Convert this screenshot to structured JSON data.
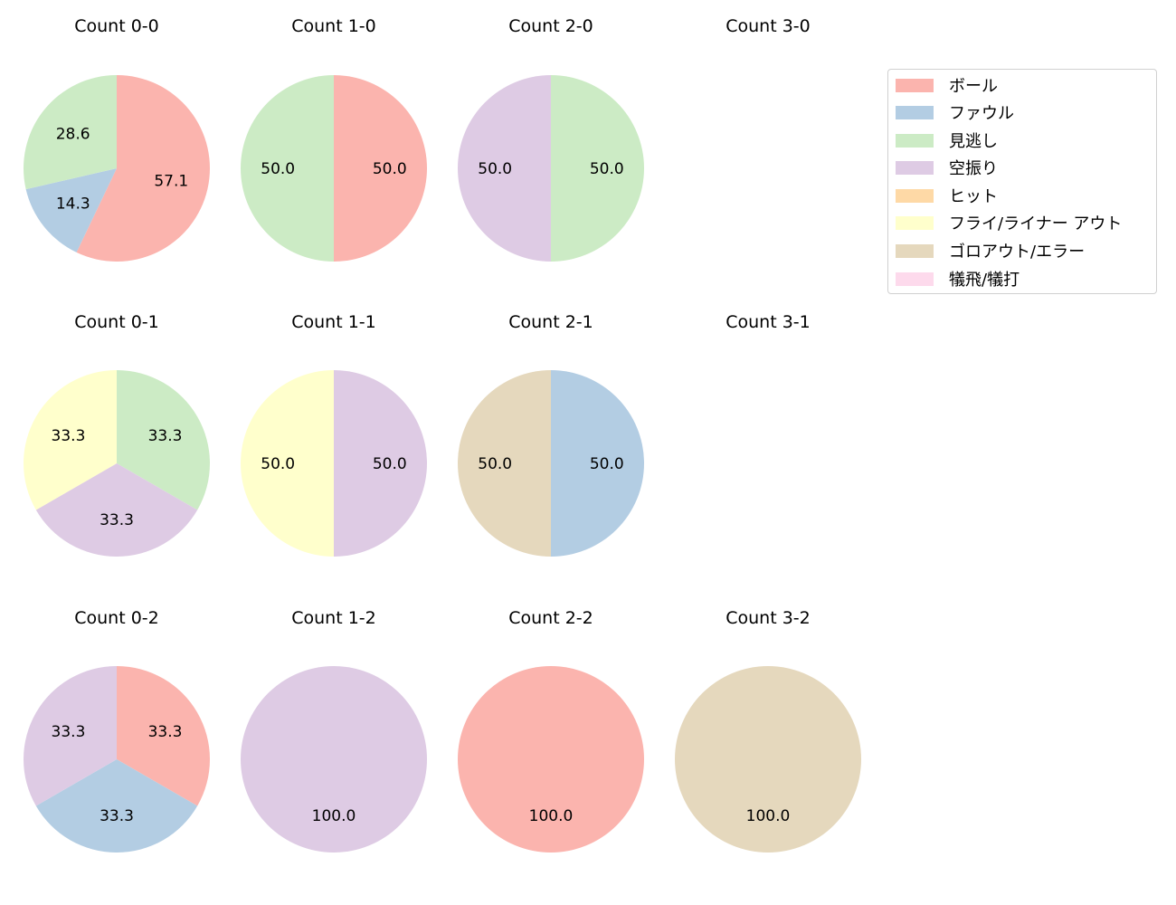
{
  "chart_data": {
    "type": "pie",
    "figure_layout": {
      "rows": 3,
      "cols": 4,
      "legend_position": "upper right"
    },
    "legend": [
      {
        "label": "ボール",
        "color": "#fbb4ae"
      },
      {
        "label": "ファウル",
        "color": "#b3cde3"
      },
      {
        "label": "見逃し",
        "color": "#ccebc5"
      },
      {
        "label": "空振り",
        "color": "#decbe4"
      },
      {
        "label": "ヒット",
        "color": "#fed9a6"
      },
      {
        "label": "フライ/ライナー アウト",
        "color": "#ffffcc"
      },
      {
        "label": "ゴロアウト/エラー",
        "color": "#e5d8bd"
      },
      {
        "label": "犠飛/犠打",
        "color": "#fddaec"
      }
    ],
    "charts": [
      {
        "title": "Count 0-0",
        "row": 0,
        "col": 0,
        "slices": [
          {
            "label": "ボール",
            "value": 57.1
          },
          {
            "label": "ファウル",
            "value": 14.3
          },
          {
            "label": "見逃し",
            "value": 28.6
          }
        ]
      },
      {
        "title": "Count 1-0",
        "row": 0,
        "col": 1,
        "slices": [
          {
            "label": "ボール",
            "value": 50.0
          },
          {
            "label": "見逃し",
            "value": 50.0
          }
        ]
      },
      {
        "title": "Count 2-0",
        "row": 0,
        "col": 2,
        "slices": [
          {
            "label": "見逃し",
            "value": 50.0
          },
          {
            "label": "空振り",
            "value": 50.0
          }
        ]
      },
      {
        "title": "Count 3-0",
        "row": 0,
        "col": 3,
        "slices": []
      },
      {
        "title": "Count 0-1",
        "row": 1,
        "col": 0,
        "slices": [
          {
            "label": "見逃し",
            "value": 33.3
          },
          {
            "label": "空振り",
            "value": 33.3
          },
          {
            "label": "フライ/ライナー アウト",
            "value": 33.3
          }
        ]
      },
      {
        "title": "Count 1-1",
        "row": 1,
        "col": 1,
        "slices": [
          {
            "label": "空振り",
            "value": 50.0
          },
          {
            "label": "フライ/ライナー アウト",
            "value": 50.0
          }
        ]
      },
      {
        "title": "Count 2-1",
        "row": 1,
        "col": 2,
        "slices": [
          {
            "label": "ファウル",
            "value": 50.0
          },
          {
            "label": "ゴロアウト/エラー",
            "value": 50.0
          }
        ]
      },
      {
        "title": "Count 3-1",
        "row": 1,
        "col": 3,
        "slices": []
      },
      {
        "title": "Count 0-2",
        "row": 2,
        "col": 0,
        "slices": [
          {
            "label": "ボール",
            "value": 33.3
          },
          {
            "label": "ファウル",
            "value": 33.3
          },
          {
            "label": "空振り",
            "value": 33.3
          }
        ]
      },
      {
        "title": "Count 1-2",
        "row": 2,
        "col": 1,
        "slices": [
          {
            "label": "空振り",
            "value": 100.0
          }
        ]
      },
      {
        "title": "Count 2-2",
        "row": 2,
        "col": 2,
        "slices": [
          {
            "label": "ボール",
            "value": 100.0
          }
        ]
      },
      {
        "title": "Count 3-2",
        "row": 2,
        "col": 3,
        "slices": [
          {
            "label": "ゴロアウト/エラー",
            "value": 100.0
          }
        ]
      }
    ]
  }
}
